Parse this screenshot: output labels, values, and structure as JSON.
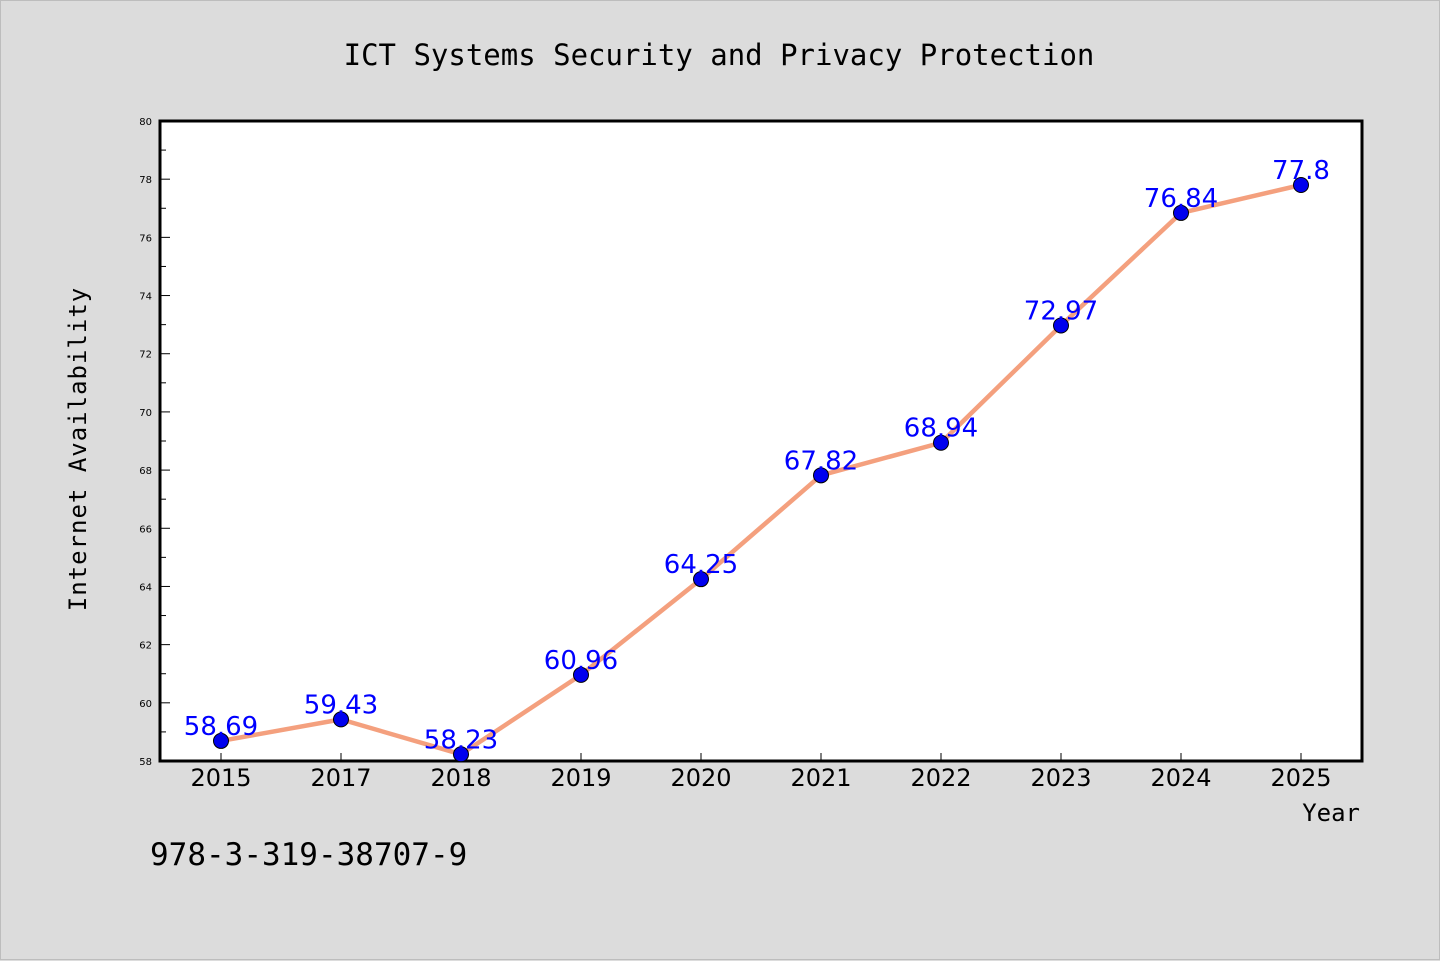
{
  "chart_data": {
    "type": "line",
    "title": "ICT Systems Security and Privacy Protection",
    "xlabel": "Year",
    "ylabel": "Internet Availability",
    "categories": [
      "2015",
      "2017",
      "2018",
      "2019",
      "2020",
      "2021",
      "2022",
      "2023",
      "2024",
      "2025"
    ],
    "series": [
      {
        "values": [
          58.69,
          59.43,
          58.23,
          60.96,
          64.25,
          67.82,
          68.94,
          72.97,
          76.84,
          77.8
        ],
        "labels": [
          "58.69",
          "59.43",
          "58.23",
          "60.96",
          "64.25",
          "67.82",
          "68.94",
          "72.97",
          "76.84",
          "77.8"
        ]
      }
    ],
    "ylim": [
      58,
      80
    ],
    "yticks": [
      58,
      60,
      62,
      64,
      66,
      68,
      70,
      72,
      74,
      76,
      78,
      80
    ],
    "grid": false,
    "line_color": "#f4a07e",
    "marker_color": "#0000ee",
    "label_color": "#0000ff"
  },
  "footer_text": "978-3-319-38707-9"
}
